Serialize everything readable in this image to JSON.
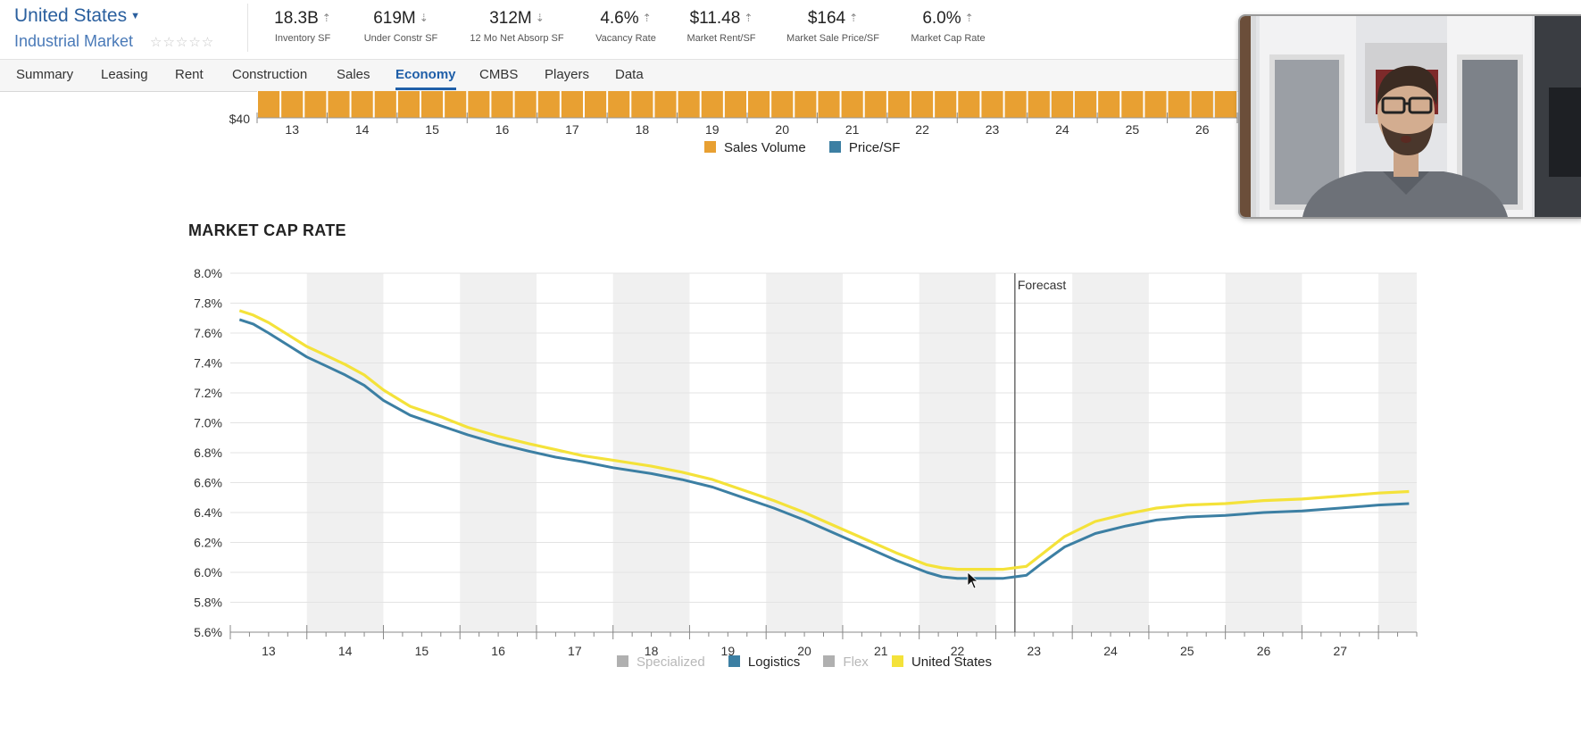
{
  "header": {
    "market_title": "United States",
    "market_subtitle": "Industrial Market",
    "rating_stars": "☆☆☆☆☆",
    "stats": [
      {
        "value": "18.3B",
        "label": "Inventory SF",
        "arrow": "up"
      },
      {
        "value": "619M",
        "label": "Under Constr SF",
        "arrow": "down"
      },
      {
        "value": "312M",
        "label": "12 Mo Net Absorp SF",
        "arrow": "down"
      },
      {
        "value": "4.6%",
        "label": "Vacancy Rate",
        "arrow": "up"
      },
      {
        "value": "$11.48",
        "label": "Market Rent/SF",
        "arrow": "up"
      },
      {
        "value": "$164",
        "label": "Market Sale Price/SF",
        "arrow": "up"
      },
      {
        "value": "6.0%",
        "label": "Market Cap Rate",
        "arrow": "up"
      }
    ]
  },
  "nav": {
    "tabs": [
      "Summary",
      "Leasing",
      "Rent",
      "Construction",
      "Sales",
      "Economy",
      "CMBS",
      "Players",
      "Data"
    ],
    "active": "Economy"
  },
  "colors": {
    "sales_volume": "#e8a032",
    "price_sf": "#3c7fa3",
    "logistics": "#3c7fa3",
    "united_states": "#f4e23a",
    "inactive_series": "#b0b0b0"
  },
  "chart_data": [
    {
      "type": "bar",
      "title": "",
      "ylabel_visible_tick": "$40",
      "x_ticks": [
        "13",
        "14",
        "15",
        "16",
        "17",
        "18",
        "19",
        "20",
        "21",
        "22",
        "23",
        "24",
        "25",
        "26"
      ],
      "x_range": [
        12.5,
        26.5
      ],
      "bar_count": 42,
      "bars_partially_visible": true,
      "legend": [
        {
          "name": "Sales Volume"
        },
        {
          "name": "Price/SF"
        }
      ]
    },
    {
      "type": "line",
      "title": "MARKET CAP RATE",
      "ylabel": "",
      "ylim": [
        5.6,
        8.0
      ],
      "y_ticks": [
        "8.0%",
        "7.8%",
        "7.6%",
        "7.4%",
        "7.2%",
        "7.0%",
        "6.8%",
        "6.6%",
        "6.4%",
        "6.2%",
        "6.0%",
        "5.8%",
        "5.6%"
      ],
      "x_ticks": [
        "13",
        "14",
        "15",
        "16",
        "17",
        "18",
        "19",
        "20",
        "21",
        "22",
        "23",
        "24",
        "25",
        "26",
        "27"
      ],
      "x_range": [
        12.5,
        28.0
      ],
      "forecast_start": 22.75,
      "forecast_label": "Forecast",
      "series": [
        {
          "name": "Logistics",
          "active": true,
          "points": [
            [
              12.62,
              7.69
            ],
            [
              12.8,
              7.66
            ],
            [
              13.0,
              7.6
            ],
            [
              13.25,
              7.52
            ],
            [
              13.5,
              7.44
            ],
            [
              13.75,
              7.38
            ],
            [
              14.0,
              7.32
            ],
            [
              14.25,
              7.25
            ],
            [
              14.5,
              7.15
            ],
            [
              14.85,
              7.05
            ],
            [
              15.25,
              6.98
            ],
            [
              15.6,
              6.92
            ],
            [
              16.0,
              6.86
            ],
            [
              16.4,
              6.81
            ],
            [
              16.75,
              6.77
            ],
            [
              17.1,
              6.74
            ],
            [
              17.5,
              6.7
            ],
            [
              18.0,
              6.66
            ],
            [
              18.4,
              6.62
            ],
            [
              18.8,
              6.57
            ],
            [
              19.2,
              6.5
            ],
            [
              19.6,
              6.43
            ],
            [
              20.0,
              6.35
            ],
            [
              20.4,
              6.26
            ],
            [
              20.8,
              6.17
            ],
            [
              21.2,
              6.08
            ],
            [
              21.6,
              6.0
            ],
            [
              21.8,
              5.97
            ],
            [
              22.0,
              5.96
            ],
            [
              22.4,
              5.96
            ],
            [
              22.6,
              5.96
            ],
            [
              22.9,
              5.98
            ],
            [
              23.1,
              6.06
            ],
            [
              23.4,
              6.17
            ],
            [
              23.8,
              6.26
            ],
            [
              24.2,
              6.31
            ],
            [
              24.6,
              6.35
            ],
            [
              25.0,
              6.37
            ],
            [
              25.5,
              6.38
            ],
            [
              26.0,
              6.4
            ],
            [
              26.5,
              6.41
            ],
            [
              27.0,
              6.43
            ],
            [
              27.5,
              6.45
            ],
            [
              27.9,
              6.46
            ]
          ]
        },
        {
          "name": "United States",
          "active": true,
          "points": [
            [
              12.62,
              7.75
            ],
            [
              12.8,
              7.72
            ],
            [
              13.0,
              7.67
            ],
            [
              13.25,
              7.59
            ],
            [
              13.5,
              7.51
            ],
            [
              13.75,
              7.45
            ],
            [
              14.0,
              7.39
            ],
            [
              14.25,
              7.32
            ],
            [
              14.5,
              7.22
            ],
            [
              14.85,
              7.11
            ],
            [
              15.25,
              7.04
            ],
            [
              15.6,
              6.97
            ],
            [
              16.0,
              6.91
            ],
            [
              16.4,
              6.86
            ],
            [
              16.75,
              6.82
            ],
            [
              17.1,
              6.78
            ],
            [
              17.5,
              6.75
            ],
            [
              18.0,
              6.71
            ],
            [
              18.4,
              6.67
            ],
            [
              18.8,
              6.62
            ],
            [
              19.2,
              6.55
            ],
            [
              19.6,
              6.48
            ],
            [
              20.0,
              6.4
            ],
            [
              20.4,
              6.31
            ],
            [
              20.8,
              6.22
            ],
            [
              21.2,
              6.13
            ],
            [
              21.6,
              6.05
            ],
            [
              21.8,
              6.03
            ],
            [
              22.0,
              6.02
            ],
            [
              22.4,
              6.02
            ],
            [
              22.6,
              6.02
            ],
            [
              22.9,
              6.04
            ],
            [
              23.1,
              6.12
            ],
            [
              23.4,
              6.24
            ],
            [
              23.8,
              6.34
            ],
            [
              24.2,
              6.39
            ],
            [
              24.6,
              6.43
            ],
            [
              25.0,
              6.45
            ],
            [
              25.5,
              6.46
            ],
            [
              26.0,
              6.48
            ],
            [
              26.5,
              6.49
            ],
            [
              27.0,
              6.51
            ],
            [
              27.5,
              6.53
            ],
            [
              27.9,
              6.54
            ]
          ]
        }
      ],
      "legend": [
        {
          "name": "Specialized",
          "active": false
        },
        {
          "name": "Logistics",
          "active": true
        },
        {
          "name": "Flex",
          "active": false
        },
        {
          "name": "United States",
          "active": true
        }
      ]
    }
  ]
}
